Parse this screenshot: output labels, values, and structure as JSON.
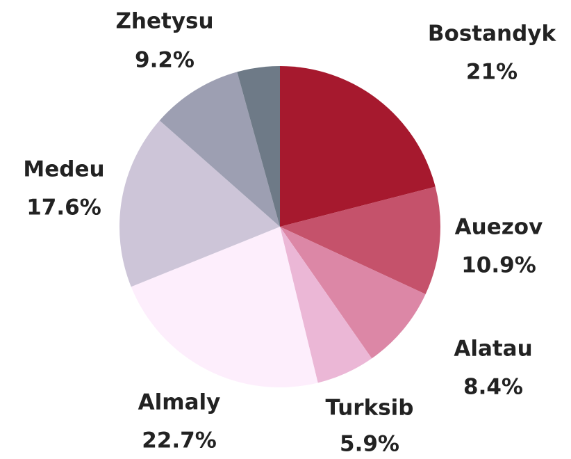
{
  "chart_data": {
    "type": "pie",
    "categories": [
      "Bostandyk",
      "Auezov",
      "Alatau",
      "Turksib",
      "Almaly",
      "Medeu",
      "Zhetysu",
      null
    ],
    "values": [
      21,
      10.9,
      8.4,
      5.9,
      22.7,
      17.6,
      9.2,
      4.3
    ],
    "value_labels": [
      "21%",
      "10.9%",
      "8.4%",
      "5.9%",
      "22.7%",
      "17.6%",
      "9.2%",
      null
    ],
    "colors": [
      "#a6192e",
      "#c5526b",
      "#dc87a6",
      "#ebb7d6",
      "#fdeefc",
      "#cdc5d8",
      "#9d9fb2",
      "#6e7a87"
    ]
  }
}
